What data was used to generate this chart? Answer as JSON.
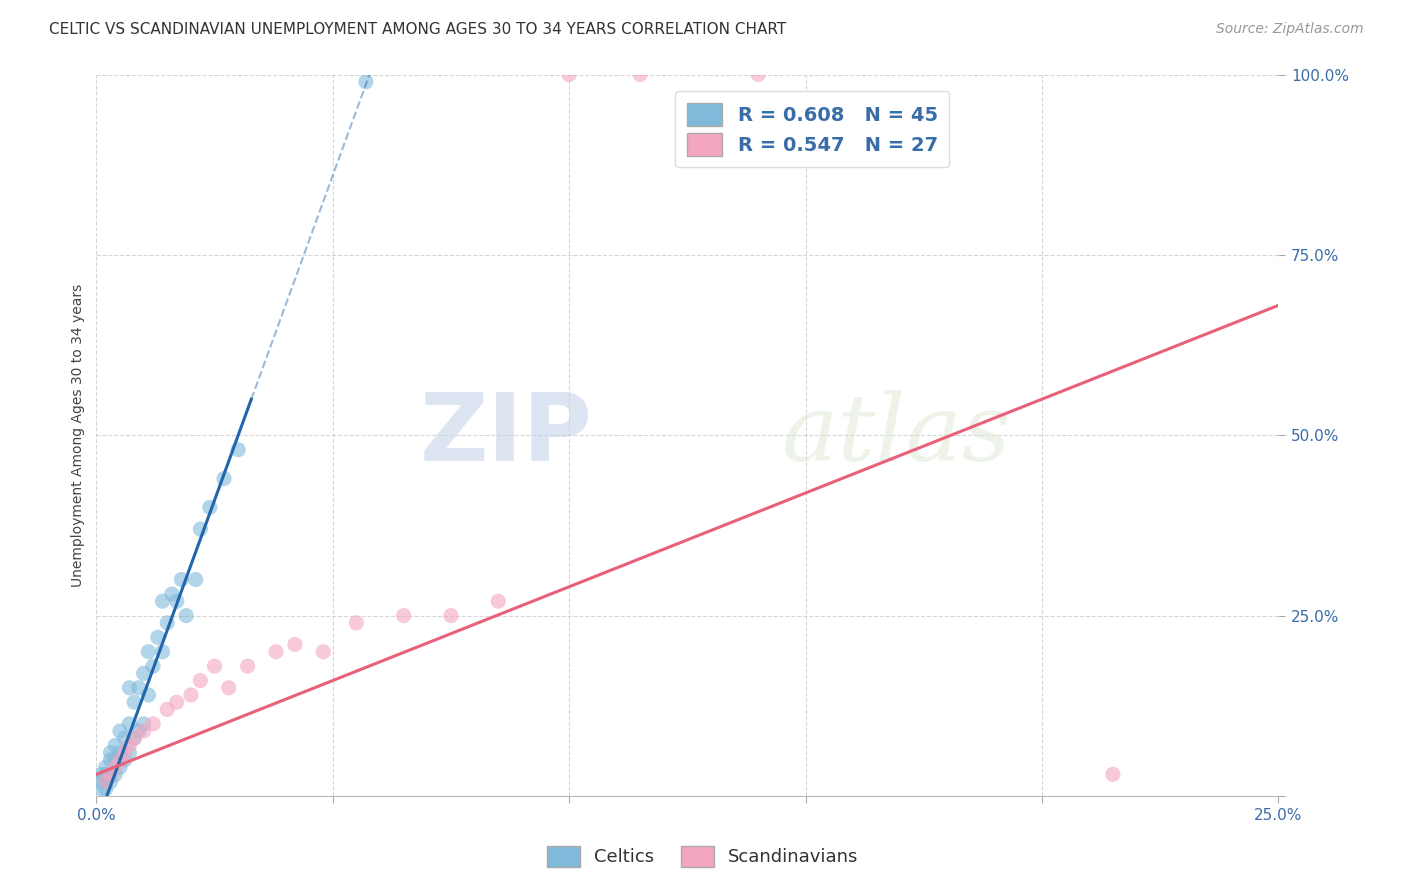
{
  "title": "CELTIC VS SCANDINAVIAN UNEMPLOYMENT AMONG AGES 30 TO 34 YEARS CORRELATION CHART",
  "source": "Source: ZipAtlas.com",
  "ylabel": "Unemployment Among Ages 30 to 34 years",
  "xlim": [
    0.0,
    0.25
  ],
  "ylim": [
    0.0,
    1.0
  ],
  "xtick_positions": [
    0.0,
    0.05,
    0.1,
    0.15,
    0.2,
    0.25
  ],
  "xtick_labels": [
    "0.0%",
    "",
    "",
    "",
    "",
    "25.0%"
  ],
  "ytick_positions": [
    0.0,
    0.25,
    0.5,
    0.75,
    1.0
  ],
  "ytick_labels": [
    "",
    "25.0%",
    "50.0%",
    "75.0%",
    "100.0%"
  ],
  "celtics_color": "#7fbadb",
  "scandinavians_color": "#f4a6be",
  "celtics_line_color": "#2166ac",
  "scandinavians_line_color": "#e8607a",
  "celtics_R": "0.608",
  "celtics_N": "45",
  "scandinavians_R": "0.547",
  "scandinavians_N": "27",
  "watermark_zip": "ZIP",
  "watermark_atlas": "atlas",
  "title_fontsize": 11,
  "axis_label_fontsize": 10,
  "tick_fontsize": 11,
  "legend_fontsize": 14,
  "source_fontsize": 10,
  "celtics_line_slope": 18.0,
  "celtics_line_intercept": -0.04,
  "scandinavians_line_slope": 2.6,
  "scandinavians_line_intercept": 0.03
}
